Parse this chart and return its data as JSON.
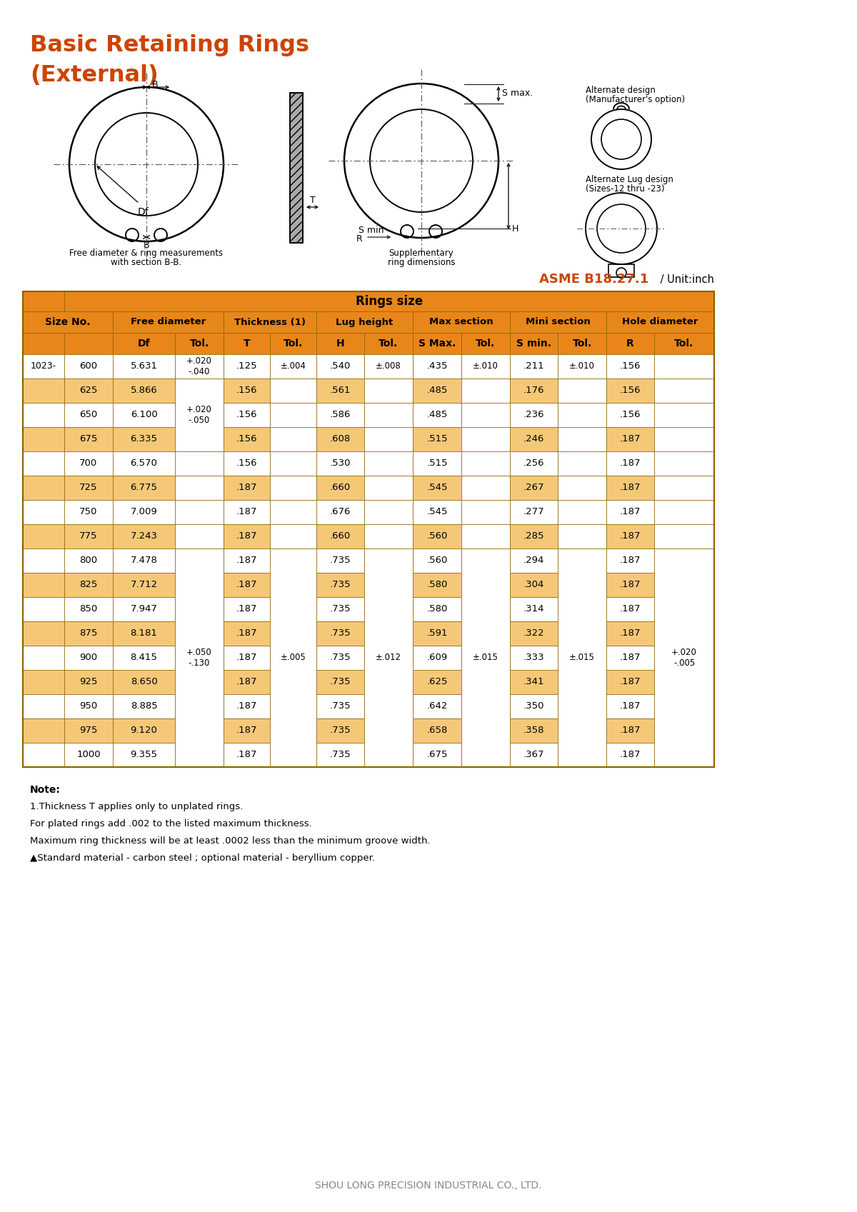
{
  "title_line1": "Basic Retaining Rings",
  "title_line2": "(External)",
  "title_color": "#CC4400",
  "standard_text": "ASME B18.27.1",
  "unit_text": " / Unit:inch",
  "bg_color": "#FFFFFF",
  "table_header_bg": "#E8861A",
  "table_row_odd_bg": "#F5C878",
  "table_row_even_bg": "#FFFFFF",
  "table_border_color": "#8B6000",
  "rows": [
    [
      "1023-",
      "600",
      "5.631",
      ".125",
      ".540",
      ".435",
      ".211",
      ".156"
    ],
    [
      "",
      "625",
      "5.866",
      ".156",
      ".561",
      ".485",
      ".176",
      ".156"
    ],
    [
      "",
      "650",
      "6.100",
      ".156",
      ".586",
      ".485",
      ".236",
      ".156"
    ],
    [
      "",
      "675",
      "6.335",
      ".156",
      ".608",
      ".515",
      ".246",
      ".187"
    ],
    [
      "",
      "700",
      "6.570",
      ".156",
      ".530",
      ".515",
      ".256",
      ".187"
    ],
    [
      "",
      "725",
      "6.775",
      ".187",
      ".660",
      ".545",
      ".267",
      ".187"
    ],
    [
      "",
      "750",
      "7.009",
      ".187",
      ".676",
      ".545",
      ".277",
      ".187"
    ],
    [
      "",
      "775",
      "7.243",
      ".187",
      ".660",
      ".560",
      ".285",
      ".187"
    ],
    [
      "",
      "800",
      "7.478",
      ".187",
      ".735",
      ".560",
      ".294",
      ".187"
    ],
    [
      "",
      "825",
      "7.712",
      ".187",
      ".735",
      ".580",
      ".304",
      ".187"
    ],
    [
      "",
      "850",
      "7.947",
      ".187",
      ".735",
      ".580",
      ".314",
      ".187"
    ],
    [
      "",
      "875",
      "8.181",
      ".187",
      ".735",
      ".591",
      ".322",
      ".187"
    ],
    [
      "",
      "900",
      "8.415",
      ".187",
      ".735",
      ".609",
      ".333",
      ".187"
    ],
    [
      "",
      "925",
      "8.650",
      ".187",
      ".735",
      ".625",
      ".341",
      ".187"
    ],
    [
      "",
      "950",
      "8.885",
      ".187",
      ".735",
      ".642",
      ".350",
      ".187"
    ],
    [
      "",
      "975",
      "9.120",
      ".187",
      ".735",
      ".658",
      ".358",
      ".187"
    ],
    [
      "",
      "1000",
      "9.355",
      ".187",
      ".735",
      ".675",
      ".367",
      ".187"
    ]
  ],
  "odd_rows": [
    1,
    3,
    5,
    7,
    9,
    11,
    13,
    15
  ],
  "note_lines": [
    "Note:",
    "1.Thickness T applies only to unplated rings.",
    "For plated rings add .002 to the listed maximum thickness.",
    "Maximum ring thickness will be at least .0002 less than the minimum groove width.",
    "▲Standard material - carbon steel ; optional material - beryllium copper."
  ],
  "footer_text": "SHOU LONG PRECISION INDUSTRIAL CO., LTD."
}
